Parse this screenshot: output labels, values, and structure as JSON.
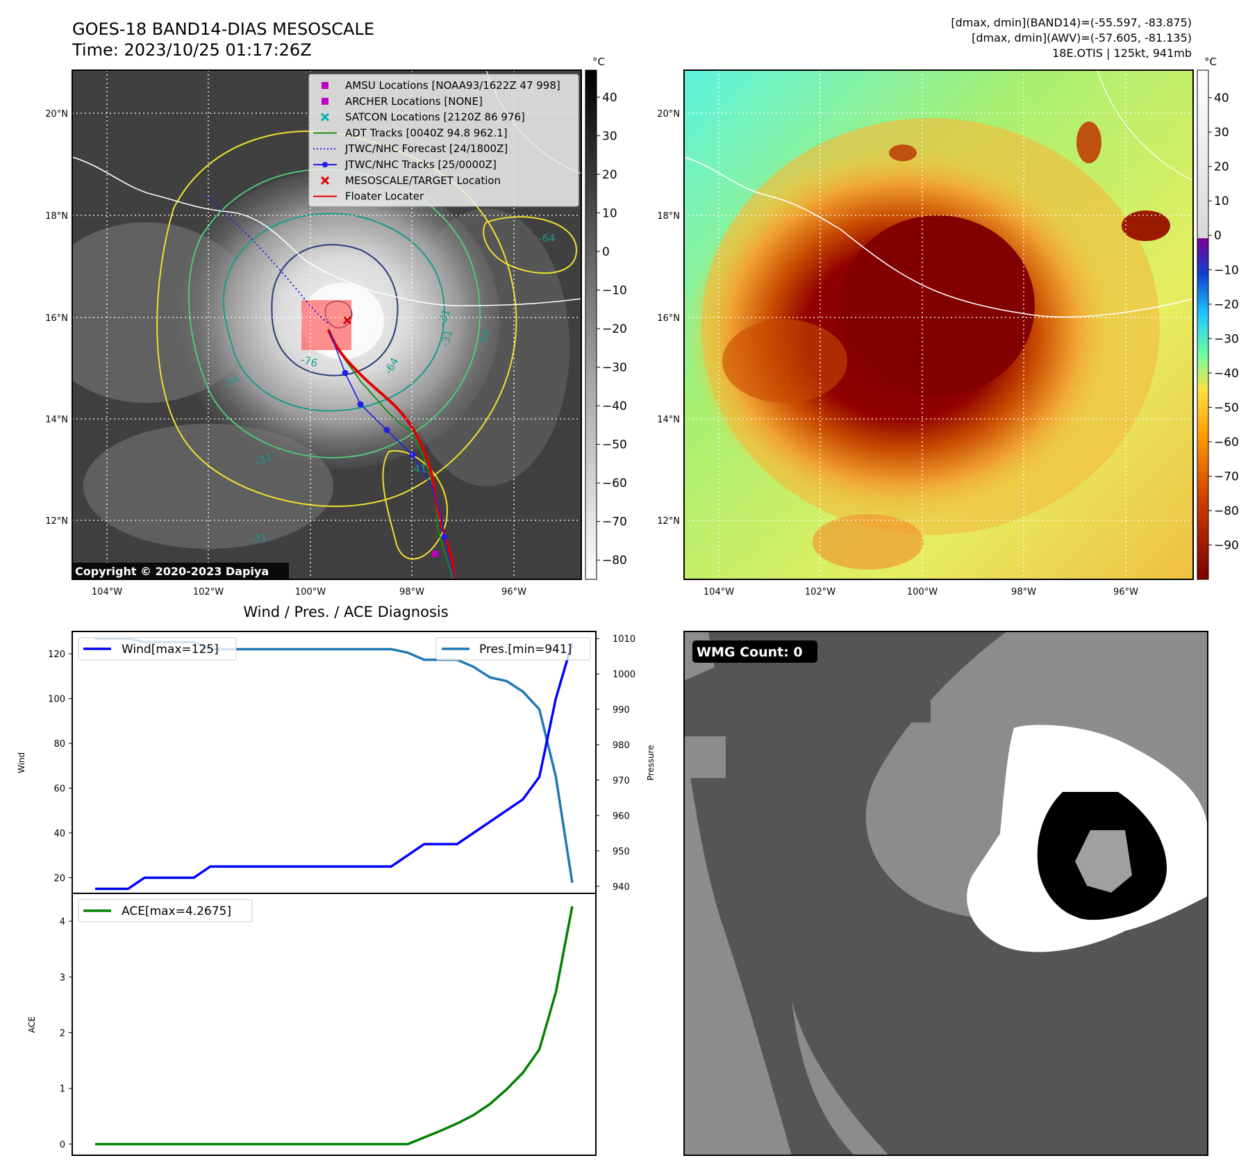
{
  "header": {
    "title_line1": "GOES-18 BAND14-DIAS MESOSCALE",
    "title_line2": "Time: 2023/10/25 01:17:26Z",
    "info_line1": "[dmax, dmin](BAND14)=(-55.597, -83.875)",
    "info_line2": "[dmax, dmin](AWV)=(-57.605, -81.135)",
    "info_line3": "18E.OTIS | 125kt, 941mb"
  },
  "maps": {
    "lon_ticks": [
      "104°W",
      "102°W",
      "100°W",
      "98°W",
      "96°W"
    ],
    "lat_ticks": [
      "20°N",
      "18°N",
      "16°N",
      "14°N",
      "12°N"
    ],
    "copyright": "Copyright © 2020-2023 Dapiya",
    "contour_labels": [
      "-64",
      "-64",
      "-54",
      "-76",
      "-31",
      "-54",
      "-31",
      "-41",
      "-31",
      "-31"
    ],
    "colorbar_unit": "°C",
    "ir_colorbar_ticks": [
      "40",
      "30",
      "20",
      "10",
      "0",
      "−10",
      "−20",
      "−30",
      "−40",
      "−50",
      "−60",
      "−70",
      "−80"
    ],
    "awv_colorbar_ticks": [
      "40",
      "30",
      "20",
      "10",
      "0",
      "−10",
      "−20",
      "−30",
      "−40",
      "−50",
      "−60",
      "−70",
      "−80",
      "−90"
    ],
    "legend": [
      {
        "label": "AMSU Locations [NOAA93/1622Z 47 998]",
        "symbol": "square",
        "color": "#c000c0"
      },
      {
        "label": "ARCHER Locations [NONE]",
        "symbol": "square",
        "color": "#c000c0"
      },
      {
        "label": "SATCON Locations [2120Z 86 976]",
        "symbol": "x",
        "color": "#00b0b0"
      },
      {
        "label": "ADT Tracks [0040Z 94.8 962.1]",
        "symbol": "line",
        "color": "#1a8a1a"
      },
      {
        "label": "JTWC/NHC Forecast [24/1800Z]",
        "symbol": "dotted",
        "color": "#1f1fe6"
      },
      {
        "label": "JTWC/NHC Tracks [25/0000Z]",
        "symbol": "line-dot",
        "color": "#1f1fe6"
      },
      {
        "label": "MESOSCALE/TARGET Location",
        "symbol": "x",
        "color": "#e00000"
      },
      {
        "label": "Floater Locater",
        "symbol": "line",
        "color": "#e00000"
      }
    ]
  },
  "diagnosis": {
    "title": "Wind / Pres. / ACE Diagnosis",
    "wind_ylabel": "Wind",
    "pres_ylabel": "Pressure",
    "ace_ylabel": "ACE",
    "wind_ticks": [
      "20",
      "40",
      "60",
      "80",
      "100",
      "120"
    ],
    "pres_ticks": [
      "940",
      "950",
      "960",
      "970",
      "980",
      "990",
      "1000",
      "1010"
    ],
    "ace_ticks": [
      "0",
      "1",
      "2",
      "3",
      "4"
    ],
    "wind_legend": "Wind[max=125]",
    "pres_legend": "Pres.[min=941]",
    "ace_legend": "ACE[max=4.2675]"
  },
  "wmg": {
    "label": "WMG Count: 0"
  },
  "colors": {
    "wind": "#0000ff",
    "pressure": "#1f77b4",
    "ace": "#008000",
    "contour_yellow": "#f0e030",
    "contour_green": "#50c878",
    "contour_teal": "#1a9a8a",
    "contour_navy": "#283c78"
  },
  "chart_data": [
    {
      "type": "line",
      "x": [
        0,
        1,
        2,
        3,
        4,
        5,
        6,
        7,
        8,
        9,
        10,
        11,
        12,
        13,
        14,
        15,
        16,
        17,
        18,
        19,
        20,
        21,
        22,
        23,
        24,
        25,
        26,
        27,
        28,
        29
      ],
      "series": [
        {
          "name": "Wind[max=125]",
          "axis": "left",
          "values": [
            15,
            15,
            15,
            20,
            20,
            20,
            20,
            25,
            25,
            25,
            25,
            25,
            25,
            25,
            25,
            25,
            25,
            25,
            25,
            30,
            35,
            35,
            35,
            40,
            45,
            50,
            55,
            65,
            100,
            125
          ]
        },
        {
          "name": "Pres.[min=941]",
          "axis": "right",
          "values": [
            1010,
            1010,
            1010,
            1009,
            1009,
            1009,
            1009,
            1007,
            1007,
            1007,
            1007,
            1007,
            1007,
            1007,
            1007,
            1007,
            1007,
            1007,
            1007,
            1006,
            1004,
            1004,
            1004,
            1002,
            999,
            998,
            995,
            990,
            971,
            941
          ]
        }
      ],
      "ylim": [
        13,
        130
      ],
      "y2lim": [
        938,
        1012
      ],
      "xlabel": "",
      "ylabel": "Wind",
      "y2label": "Pressure",
      "title": "Wind / Pres. / ACE Diagnosis"
    },
    {
      "type": "line",
      "x": [
        0,
        1,
        2,
        3,
        4,
        5,
        6,
        7,
        8,
        9,
        10,
        11,
        12,
        13,
        14,
        15,
        16,
        17,
        18,
        19,
        20,
        21,
        22,
        23,
        24,
        25,
        26,
        27,
        28,
        29
      ],
      "series": [
        {
          "name": "ACE[max=4.2675]",
          "values": [
            0,
            0,
            0,
            0,
            0,
            0,
            0,
            0,
            0,
            0,
            0,
            0,
            0,
            0,
            0,
            0,
            0,
            0,
            0,
            0,
            0.12,
            0.24,
            0.37,
            0.52,
            0.72,
            0.98,
            1.28,
            1.7,
            2.72,
            4.2675
          ]
        }
      ],
      "ylim": [
        -0.2,
        4.5
      ],
      "xlabel": "",
      "ylabel": "ACE"
    }
  ]
}
